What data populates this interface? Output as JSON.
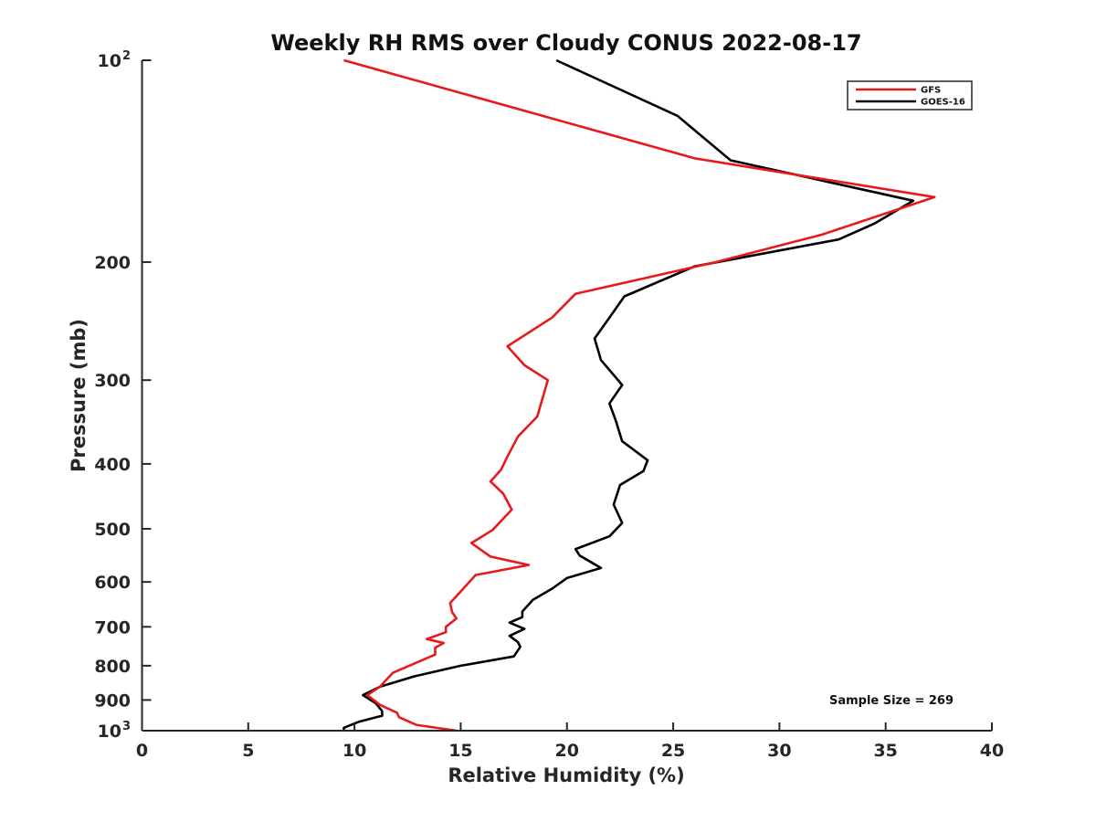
{
  "chart_data": {
    "type": "line",
    "title": "Weekly RH RMS over Cloudy CONUS 2022-08-17",
    "xlabel": "Relative Humidity (%)",
    "ylabel": "Pressure (mb)",
    "xlim": [
      0,
      40
    ],
    "ylim": [
      100,
      1000
    ],
    "y_scale": "log",
    "y_reversed": true,
    "x_ticks": [
      0,
      5,
      10,
      15,
      20,
      25,
      30,
      35,
      40
    ],
    "y_ticks": [
      {
        "value": 100,
        "label": "10",
        "exp": "2"
      },
      {
        "value": 200,
        "label": "200"
      },
      {
        "value": 300,
        "label": "300"
      },
      {
        "value": 400,
        "label": "400"
      },
      {
        "value": 500,
        "label": "500"
      },
      {
        "value": 600,
        "label": "600"
      },
      {
        "value": 700,
        "label": "700"
      },
      {
        "value": 800,
        "label": "800"
      },
      {
        "value": 900,
        "label": "900"
      },
      {
        "value": 1000,
        "label": "10",
        "exp": "3"
      }
    ],
    "grid": false,
    "legend_position": "top-right",
    "series": [
      {
        "name": "GFS",
        "color": "#e8191b",
        "points": [
          [
            9.5,
            100
          ],
          [
            26.0,
            140
          ],
          [
            37.3,
            160
          ],
          [
            32.0,
            182
          ],
          [
            27.0,
            200
          ],
          [
            20.4,
            223
          ],
          [
            19.3,
            242
          ],
          [
            17.2,
            267
          ],
          [
            18.0,
            285
          ],
          [
            19.1,
            300
          ],
          [
            18.6,
            340
          ],
          [
            17.7,
            364
          ],
          [
            17.2,
            390
          ],
          [
            16.9,
            408
          ],
          [
            16.4,
            425
          ],
          [
            17.0,
            443
          ],
          [
            17.4,
            468
          ],
          [
            16.5,
            502
          ],
          [
            15.5,
            525
          ],
          [
            16.4,
            550
          ],
          [
            18.2,
            566
          ],
          [
            15.7,
            586
          ],
          [
            15.0,
            620
          ],
          [
            14.5,
            645
          ],
          [
            14.6,
            666
          ],
          [
            14.8,
            680
          ],
          [
            14.3,
            700
          ],
          [
            14.3,
            713
          ],
          [
            13.4,
            730
          ],
          [
            14.2,
            740
          ],
          [
            13.8,
            752
          ],
          [
            13.8,
            770
          ],
          [
            11.8,
            820
          ],
          [
            11.2,
            860
          ],
          [
            10.6,
            885
          ],
          [
            11.2,
            915
          ],
          [
            12.0,
            940
          ],
          [
            12.1,
            955
          ],
          [
            12.9,
            980
          ],
          [
            14.8,
            1000
          ]
        ]
      },
      {
        "name": "GOES-16",
        "color": "#000000",
        "points": [
          [
            19.5,
            100
          ],
          [
            25.2,
            121
          ],
          [
            27.7,
            141
          ],
          [
            36.3,
            162
          ],
          [
            34.5,
            175
          ],
          [
            32.8,
            185
          ],
          [
            26.0,
            203
          ],
          [
            22.7,
            225
          ],
          [
            22.0,
            242
          ],
          [
            21.3,
            260
          ],
          [
            21.6,
            280
          ],
          [
            22.6,
            305
          ],
          [
            22.0,
            325
          ],
          [
            22.3,
            345
          ],
          [
            22.6,
            370
          ],
          [
            23.8,
            395
          ],
          [
            23.6,
            410
          ],
          [
            22.5,
            430
          ],
          [
            22.2,
            460
          ],
          [
            22.6,
            490
          ],
          [
            22.0,
            513
          ],
          [
            20.4,
            536
          ],
          [
            20.6,
            548
          ],
          [
            21.6,
            572
          ],
          [
            20.0,
            592
          ],
          [
            19.3,
            614
          ],
          [
            18.4,
            638
          ],
          [
            17.9,
            664
          ],
          [
            17.9,
            677
          ],
          [
            17.3,
            690
          ],
          [
            18.0,
            705
          ],
          [
            17.3,
            722
          ],
          [
            17.7,
            738
          ],
          [
            17.8,
            750
          ],
          [
            17.5,
            775
          ],
          [
            15.0,
            800
          ],
          [
            12.8,
            830
          ],
          [
            11.2,
            860
          ],
          [
            10.4,
            885
          ],
          [
            11.0,
            910
          ],
          [
            11.3,
            935
          ],
          [
            11.3,
            950
          ],
          [
            10.2,
            970
          ],
          [
            9.5,
            990
          ],
          [
            9.5,
            1000
          ]
        ]
      }
    ],
    "annotation": "Sample Size = 269"
  }
}
